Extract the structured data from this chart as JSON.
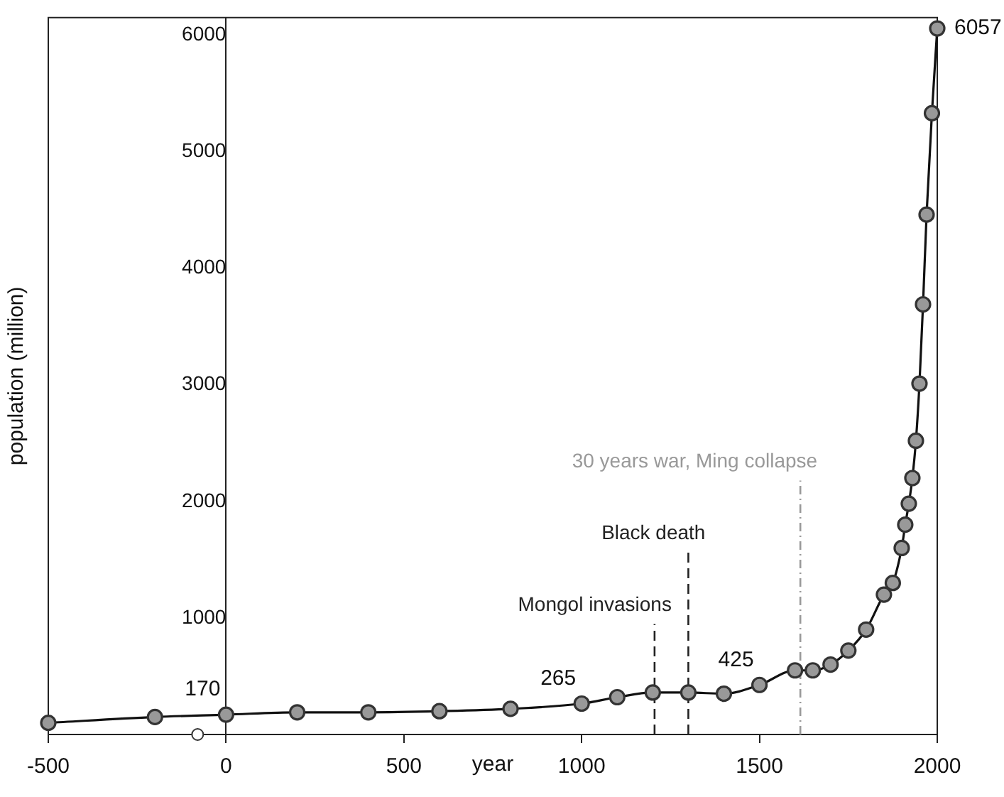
{
  "chart_data": {
    "type": "line",
    "xlabel": "year",
    "ylabel": "population (million)",
    "xlim": [
      -500,
      2000
    ],
    "ylim": [
      0,
      6150
    ],
    "xticks": [
      -500,
      0,
      500,
      1000,
      1500,
      2000
    ],
    "yticks": [
      1000,
      2000,
      3000,
      4000,
      5000,
      6000
    ],
    "grid": false,
    "legend": false,
    "marker": "circle",
    "series": [
      {
        "type": "line",
        "color": "#999999",
        "x": [
          -500,
          -200,
          0,
          200,
          400,
          600,
          800,
          1000,
          1100,
          1200,
          1300,
          1400,
          1500,
          1600,
          1650,
          1700,
          1750,
          1800,
          1850,
          1875,
          1900,
          1910,
          1920,
          1930,
          1940,
          1950,
          1960,
          1970,
          1985,
          2000
        ],
        "values": [
          100,
          150,
          170,
          190,
          190,
          200,
          220,
          265,
          320,
          360,
          360,
          350,
          425,
          550,
          550,
          600,
          720,
          900,
          1200,
          1300,
          1600,
          1800,
          1980,
          2200,
          2520,
          3010,
          3690,
          4460,
          5330,
          6057
        ],
        "value_labels": [
          null,
          null,
          "170",
          null,
          null,
          null,
          null,
          "265",
          null,
          null,
          null,
          null,
          "425",
          null,
          null,
          null,
          null,
          null,
          null,
          null,
          null,
          null,
          null,
          null,
          null,
          null,
          null,
          null,
          null,
          "6057"
        ]
      },
      {
        "type": "scatter",
        "color": "#333333",
        "x": [
          -80
        ],
        "values": [
          0
        ]
      }
    ],
    "ref_lines": [
      {
        "axis": "x",
        "value": 1205,
        "label": "Mongol invasions",
        "color": "#222222",
        "line_style": "dashed"
      },
      {
        "axis": "x",
        "value": 1300,
        "label": "Black death",
        "color": "#222222",
        "line_style": "dashed"
      },
      {
        "axis": "x",
        "value": 1615,
        "label": "30 years war, Ming collapse",
        "color": "#999999",
        "line_style": "dashdot"
      }
    ]
  }
}
